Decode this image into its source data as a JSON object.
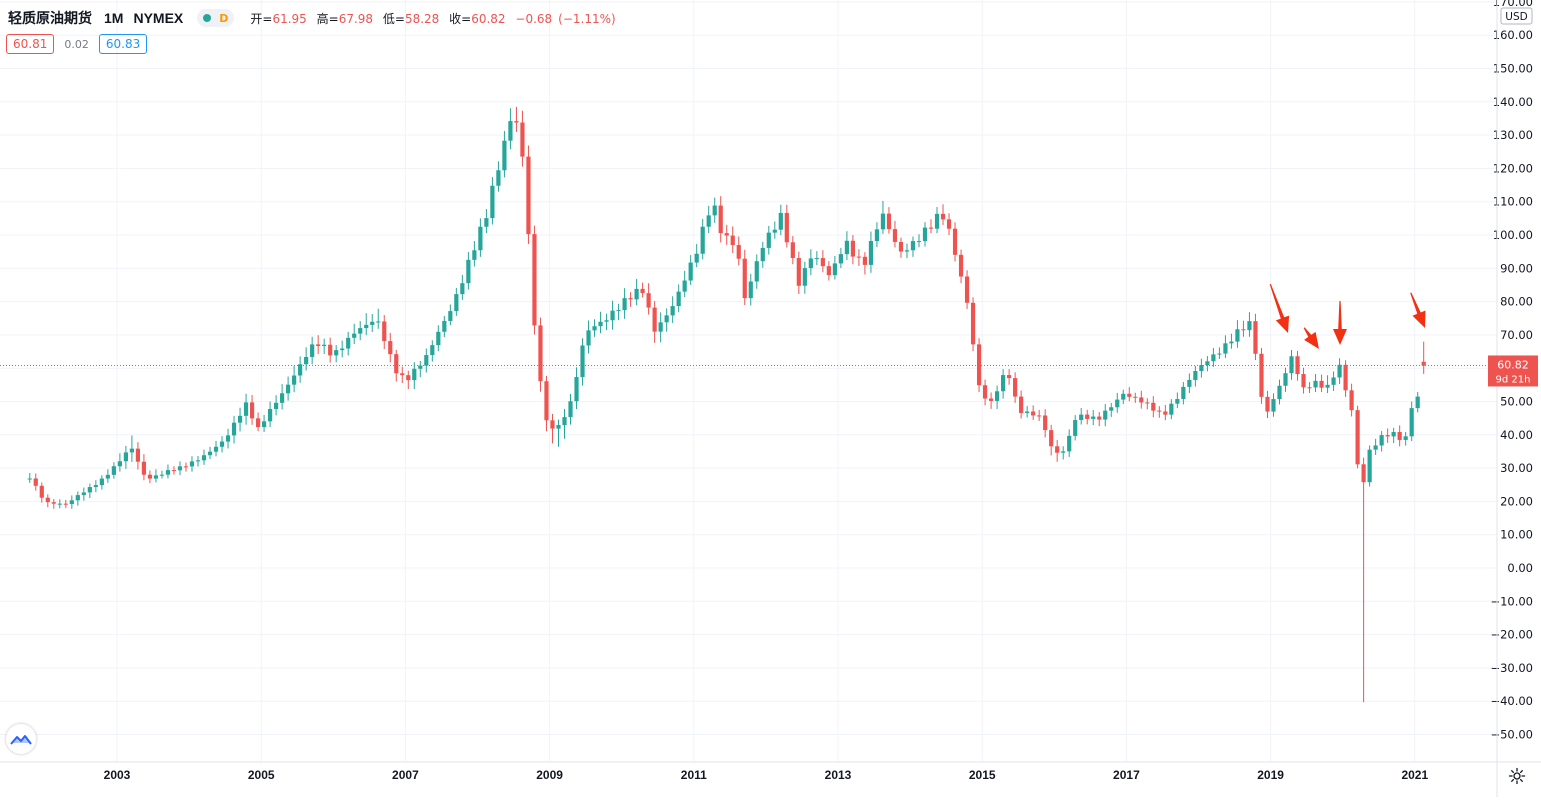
{
  "legend": {
    "symbol": "轻质原油期货",
    "interval": "1M",
    "exchange": "NYMEX",
    "status_letter": "D",
    "open_label": "开=",
    "open": "61.95",
    "high_label": "高=",
    "high": "67.98",
    "low_label": "低=",
    "low": "58.28",
    "close_label": "收=",
    "close": "60.82",
    "change": "−0.68",
    "change_pct": "(−1.11%)"
  },
  "quote": {
    "bid": "60.81",
    "spread": "0.02",
    "ask": "60.83"
  },
  "price_scale": {
    "currency": "USD",
    "last_price": "60.82",
    "countdown": "9d 21h"
  },
  "colors": {
    "up": "#26a69a",
    "down": "#ef5350",
    "grid": "#f0f3fa",
    "arrow": "#f23012"
  },
  "icons": {
    "logo": "tradingview-cloud-icon",
    "settings": "gear-icon"
  },
  "chart_data": {
    "type": "candlestick",
    "x_axis": {
      "ticks": [
        "2003",
        "2005",
        "2007",
        "2009",
        "2011",
        "2013",
        "2015",
        "2017",
        "2019",
        "2021"
      ],
      "range_years": [
        2001.8,
        2022.0
      ]
    },
    "y_axis": {
      "min": -55,
      "max": 170,
      "step": 10,
      "tick_labels": [
        "170.00",
        "160.00",
        "150.00",
        "140.00",
        "130.00",
        "120.00",
        "110.00",
        "100.00",
        "90.00",
        "80.00",
        "70.00",
        "60.00",
        "50.00",
        "40.00",
        "30.00",
        "20.00",
        "10.00",
        "0.00",
        "−10.00",
        "−20.00",
        "−30.00",
        "−40.00",
        "−50.00"
      ]
    },
    "anchors": [
      [
        2001.8,
        27,
        2,
        1.5
      ],
      [
        2002.0,
        20,
        1,
        1.5
      ],
      [
        2002.3,
        19,
        1.5,
        2
      ],
      [
        2002.8,
        27,
        1.5,
        1.5
      ],
      [
        2003.0,
        31,
        2,
        2
      ],
      [
        2003.2,
        36,
        4,
        3
      ],
      [
        2003.4,
        27,
        2,
        1.5
      ],
      [
        2003.9,
        30,
        1.5,
        1.5
      ],
      [
        2004.5,
        38,
        2,
        2
      ],
      [
        2004.8,
        50,
        3,
        3
      ],
      [
        2004.95,
        42,
        2,
        2
      ],
      [
        2005.3,
        52,
        3,
        2
      ],
      [
        2005.6,
        64,
        3,
        3
      ],
      [
        2005.75,
        68,
        3,
        3
      ],
      [
        2006.0,
        63,
        2,
        2
      ],
      [
        2006.3,
        72,
        3,
        3
      ],
      [
        2006.6,
        74,
        4,
        2
      ],
      [
        2006.85,
        60,
        2,
        3
      ],
      [
        2007.0,
        57,
        2,
        4
      ],
      [
        2007.3,
        63,
        2,
        2
      ],
      [
        2007.6,
        77,
        2,
        2
      ],
      [
        2007.9,
        93,
        3,
        2
      ],
      [
        2008.1,
        103,
        3,
        2
      ],
      [
        2008.35,
        127,
        3,
        3
      ],
      [
        2008.5,
        140,
        5,
        3
      ],
      [
        2008.65,
        119,
        4,
        3
      ],
      [
        2008.8,
        68,
        3,
        3
      ],
      [
        2008.95,
        44,
        2,
        5
      ],
      [
        2009.1,
        42,
        2,
        7
      ],
      [
        2009.3,
        50,
        3,
        2
      ],
      [
        2009.5,
        70,
        3,
        3
      ],
      [
        2009.9,
        78,
        3,
        3
      ],
      [
        2010.3,
        83,
        3,
        2
      ],
      [
        2010.45,
        72,
        3,
        4
      ],
      [
        2010.75,
        80,
        3,
        2
      ],
      [
        2011.0,
        92,
        3,
        2
      ],
      [
        2011.25,
        112,
        3,
        2
      ],
      [
        2011.4,
        100,
        3,
        3
      ],
      [
        2011.6,
        95,
        3,
        3
      ],
      [
        2011.7,
        80,
        3,
        3
      ],
      [
        2011.95,
        98,
        2,
        2
      ],
      [
        2012.2,
        105,
        3,
        2
      ],
      [
        2012.45,
        85,
        2,
        3
      ],
      [
        2012.65,
        96,
        3,
        2
      ],
      [
        2012.9,
        87,
        2,
        2
      ],
      [
        2013.1,
        97,
        3,
        2
      ],
      [
        2013.35,
        92,
        2,
        3
      ],
      [
        2013.6,
        106,
        4,
        2
      ],
      [
        2013.85,
        94,
        2,
        2
      ],
      [
        2014.1,
        100,
        2,
        2
      ],
      [
        2014.45,
        105,
        3,
        2
      ],
      [
        2014.6,
        97,
        2,
        2
      ],
      [
        2014.8,
        80,
        2,
        2
      ],
      [
        2014.95,
        55,
        2,
        3
      ],
      [
        2015.1,
        48,
        2,
        3
      ],
      [
        2015.35,
        60,
        2,
        2
      ],
      [
        2015.5,
        48,
        2,
        2
      ],
      [
        2015.8,
        45,
        2,
        2
      ],
      [
        2016.0,
        34,
        2,
        3
      ],
      [
        2016.15,
        36,
        2,
        2
      ],
      [
        2016.3,
        46,
        2,
        2
      ],
      [
        2016.6,
        44,
        2,
        2
      ],
      [
        2016.95,
        53,
        2,
        2
      ],
      [
        2017.25,
        49,
        2,
        2
      ],
      [
        2017.5,
        46,
        2,
        2
      ],
      [
        2017.9,
        57,
        2,
        2
      ],
      [
        2018.2,
        64,
        2,
        2
      ],
      [
        2018.5,
        70,
        3,
        2
      ],
      [
        2018.75,
        73,
        3,
        2
      ],
      [
        2018.83,
        56,
        2,
        2
      ],
      [
        2018.92,
        46,
        2,
        3
      ],
      [
        2019.1,
        54,
        2,
        2
      ],
      [
        2019.3,
        63,
        2,
        2
      ],
      [
        2019.45,
        53,
        2,
        2
      ],
      [
        2019.6,
        56,
        2,
        2
      ],
      [
        2019.8,
        55,
        3,
        2
      ],
      [
        2019.95,
        61,
        2,
        2
      ],
      [
        2020.05,
        52,
        2,
        2
      ],
      [
        2020.15,
        45,
        2,
        2
      ],
      [
        2020.25,
        20,
        2,
        1
      ],
      [
        2020.35,
        35,
        2,
        2
      ],
      [
        2020.55,
        40,
        2,
        2
      ],
      [
        2020.75,
        40,
        2,
        2
      ],
      [
        2020.85,
        36,
        2,
        2
      ],
      [
        2020.95,
        48,
        2,
        2
      ],
      [
        2021.05,
        52,
        2,
        2
      ],
      [
        2021.1,
        61.95,
        6.03,
        3.67
      ],
      [
        2021.17,
        60.82,
        1,
        1
      ]
    ],
    "special_bars": [
      {
        "date": "2020-04",
        "low": -40.32
      }
    ]
  }
}
